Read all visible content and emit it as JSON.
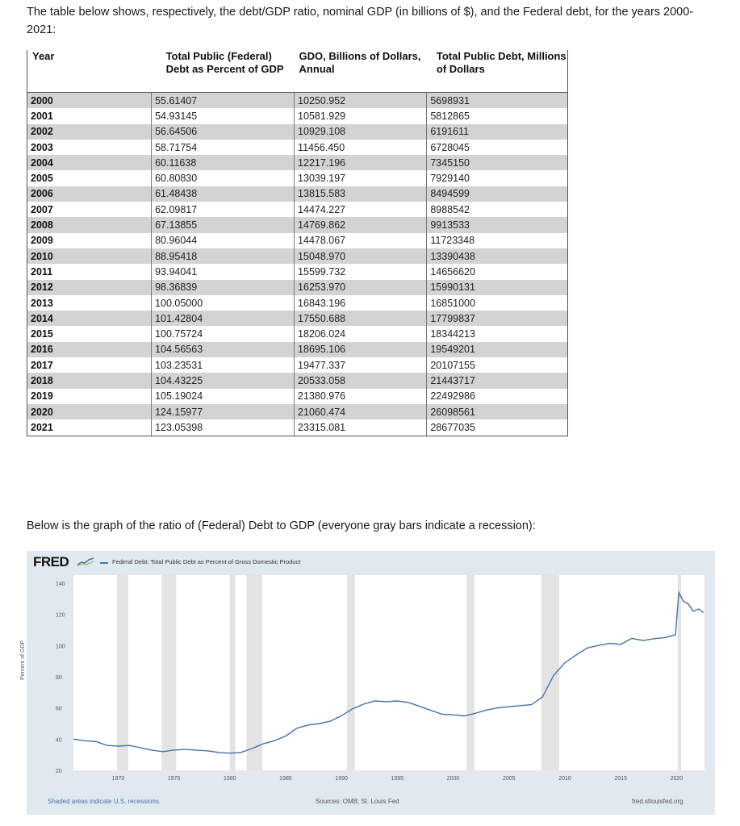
{
  "intro_text": "The table below shows, respectively, the debt/GDP ratio, nominal GDP (in billions of $), and the Federal debt, for the years 2000-2021:",
  "table": {
    "headers": [
      "Year",
      "Total Public (Federal) Debt as Percent of GDP",
      "GDO, Billions of Dollars, Annual",
      "Total Public Debt, Millions of Dollars"
    ],
    "rows": [
      [
        "2000",
        "55.61407",
        "10250.952",
        "5698931"
      ],
      [
        "2001",
        "54.93145",
        "10581.929",
        "5812865"
      ],
      [
        "2002",
        "56.64506",
        "10929.108",
        "6191611"
      ],
      [
        "2003",
        "58.71754",
        "11456.450",
        "6728045"
      ],
      [
        "2004",
        "60.11638",
        "12217.196",
        "7345150"
      ],
      [
        "2005",
        "60.80830",
        "13039.197",
        "7929140"
      ],
      [
        "2006",
        "61.48438",
        "13815.583",
        "8494599"
      ],
      [
        "2007",
        "62.09817",
        "14474.227",
        "8988542"
      ],
      [
        "2008",
        "67.13855",
        "14769.862",
        "9913533"
      ],
      [
        "2009",
        "80.96044",
        "14478.067",
        "11723348"
      ],
      [
        "2010",
        "88.95418",
        "15048.970",
        "13390438"
      ],
      [
        "2011",
        "93.94041",
        "15599.732",
        "14656620"
      ],
      [
        "2012",
        "98.36839",
        "16253.970",
        "15990131"
      ],
      [
        "2013",
        "100.05000",
        "16843.196",
        "16851000"
      ],
      [
        "2014",
        "101.42804",
        "17550.688",
        "17799837"
      ],
      [
        "2015",
        "100.75724",
        "18206.024",
        "18344213"
      ],
      [
        "2016",
        "104.56563",
        "18695.106",
        "19549201"
      ],
      [
        "2017",
        "103.23531",
        "19477.337",
        "20107155"
      ],
      [
        "2018",
        "104.43225",
        "20533.058",
        "21443717"
      ],
      [
        "2019",
        "105.19024",
        "21380.976",
        "22492986"
      ],
      [
        "2020",
        "124.15977",
        "21060.474",
        "26098561"
      ],
      [
        "2021",
        "123.05398",
        "23315.081",
        "28677035"
      ]
    ]
  },
  "graph_intro": "Below is the graph of the ratio of (Federal) Debt to GDP (everyone gray bars indicate a recession):",
  "chart_data": {
    "type": "line",
    "logo": "FRED",
    "legend": "Federal Debt: Total Public Debt as Percent of Gross Domestic Product",
    "ylabel": "Percent of GDP",
    "xlim": [
      1966,
      2022.5
    ],
    "ylim": [
      20,
      140
    ],
    "y_ticks": [
      20,
      40,
      60,
      80,
      100,
      120,
      140
    ],
    "x_ticks": [
      1970,
      1975,
      1980,
      1985,
      1990,
      1995,
      2000,
      2005,
      2010,
      2015,
      2020
    ],
    "recessions": [
      [
        1969.9,
        1970.9
      ],
      [
        1973.9,
        1975.2
      ],
      [
        1980.0,
        1980.5
      ],
      [
        1981.5,
        1982.9
      ],
      [
        1990.5,
        1991.2
      ],
      [
        2001.2,
        2001.9
      ],
      [
        2007.9,
        2009.5
      ],
      [
        2020.1,
        2020.4
      ]
    ],
    "series": [
      {
        "color": "#4572a7",
        "points": [
          [
            1966.0,
            40.0
          ],
          [
            1967.0,
            39.0
          ],
          [
            1968.0,
            38.5
          ],
          [
            1969.0,
            36.0
          ],
          [
            1970.0,
            35.5
          ],
          [
            1971.0,
            36.0
          ],
          [
            1972.0,
            34.5
          ],
          [
            1973.0,
            33.0
          ],
          [
            1974.0,
            32.0
          ],
          [
            1975.0,
            33.0
          ],
          [
            1976.0,
            33.5
          ],
          [
            1977.0,
            33.0
          ],
          [
            1978.0,
            32.5
          ],
          [
            1979.0,
            31.5
          ],
          [
            1980.0,
            31.0
          ],
          [
            1981.0,
            31.5
          ],
          [
            1982.0,
            34.0
          ],
          [
            1983.0,
            37.0
          ],
          [
            1984.0,
            39.0
          ],
          [
            1985.0,
            42.0
          ],
          [
            1986.0,
            47.0
          ],
          [
            1987.0,
            49.0
          ],
          [
            1988.0,
            50.0
          ],
          [
            1989.0,
            51.5
          ],
          [
            1990.0,
            55.0
          ],
          [
            1991.0,
            59.5
          ],
          [
            1992.0,
            62.5
          ],
          [
            1993.0,
            64.5
          ],
          [
            1994.0,
            64.0
          ],
          [
            1995.0,
            64.5
          ],
          [
            1996.0,
            63.5
          ],
          [
            1997.0,
            61.0
          ],
          [
            1998.0,
            58.5
          ],
          [
            1999.0,
            56.0
          ],
          [
            2000.0,
            55.6
          ],
          [
            2001.0,
            54.9
          ],
          [
            2002.0,
            56.6
          ],
          [
            2003.0,
            58.7
          ],
          [
            2004.0,
            60.1
          ],
          [
            2005.0,
            60.8
          ],
          [
            2006.0,
            61.5
          ],
          [
            2007.0,
            62.1
          ],
          [
            2008.0,
            67.1
          ],
          [
            2009.0,
            81.0
          ],
          [
            2010.0,
            89.0
          ],
          [
            2011.0,
            93.9
          ],
          [
            2012.0,
            98.4
          ],
          [
            2013.0,
            100.1
          ],
          [
            2014.0,
            101.4
          ],
          [
            2015.0,
            100.8
          ],
          [
            2016.0,
            104.6
          ],
          [
            2017.0,
            103.2
          ],
          [
            2018.0,
            104.4
          ],
          [
            2019.0,
            105.2
          ],
          [
            2019.9,
            107.0
          ],
          [
            2020.2,
            134.0
          ],
          [
            2020.6,
            128.5
          ],
          [
            2021.0,
            127.0
          ],
          [
            2021.5,
            122.0
          ],
          [
            2022.0,
            123.5
          ],
          [
            2022.4,
            121.0
          ]
        ]
      }
    ],
    "note_left": "Shaded areas indicate U.S. recessions.",
    "note_mid": "Sources: OMB; St. Louis Fed",
    "note_right": "fred.stlouisfed.org"
  }
}
